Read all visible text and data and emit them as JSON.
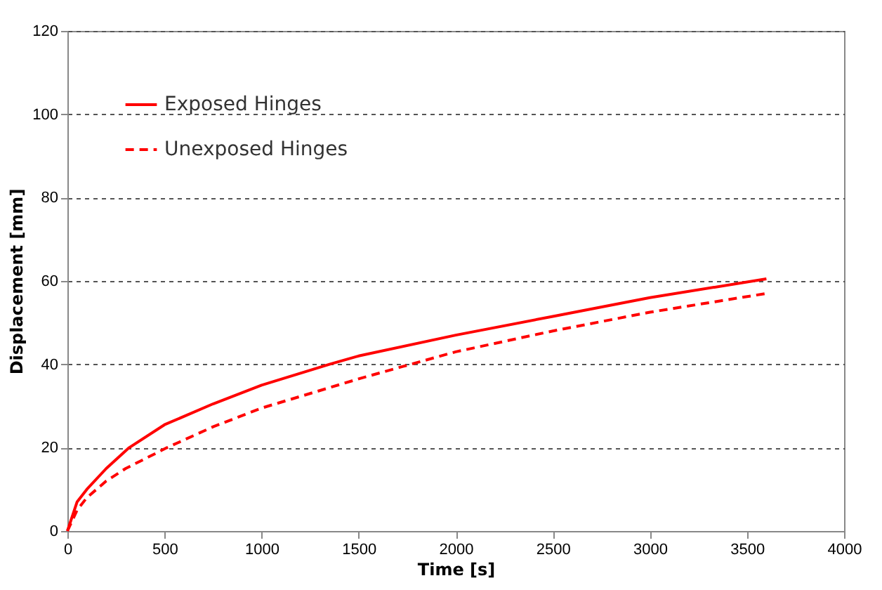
{
  "chart_data": {
    "type": "line",
    "xlabel": "Time [s]",
    "ylabel": "Displacement  [mm]",
    "xlim": [
      0,
      4000
    ],
    "xticks": [
      0,
      500,
      1000,
      1500,
      2000,
      2500,
      3000,
      3500,
      4000
    ],
    "ylim": [
      0,
      120
    ],
    "yticks": [
      0,
      20,
      40,
      60,
      80,
      100,
      120
    ],
    "grid": "y",
    "legend": "top left",
    "marker": "none",
    "series": [
      {
        "name": "Exposed Hinges",
        "color": "#ff0000",
        "line_style": "solid",
        "x": [
          0,
          50,
          100,
          200,
          318,
          500,
          750,
          1000,
          1350,
          1500,
          2000,
          2500,
          3000,
          3600
        ],
        "values": [
          0,
          7,
          10,
          15,
          20,
          25.5,
          30.5,
          35,
          40,
          42,
          47,
          51.5,
          56,
          60.5
        ]
      },
      {
        "name": "Unexposed Hinges",
        "color": "#ff0000",
        "line_style": "dashed",
        "x": [
          0,
          50,
          100,
          200,
          300,
          513,
          750,
          1000,
          1500,
          1729,
          2000,
          2500,
          3000,
          3600
        ],
        "values": [
          0,
          5,
          8,
          12,
          15,
          20,
          25,
          29.5,
          36.5,
          39.5,
          43,
          48,
          52.5,
          57
        ]
      }
    ]
  }
}
